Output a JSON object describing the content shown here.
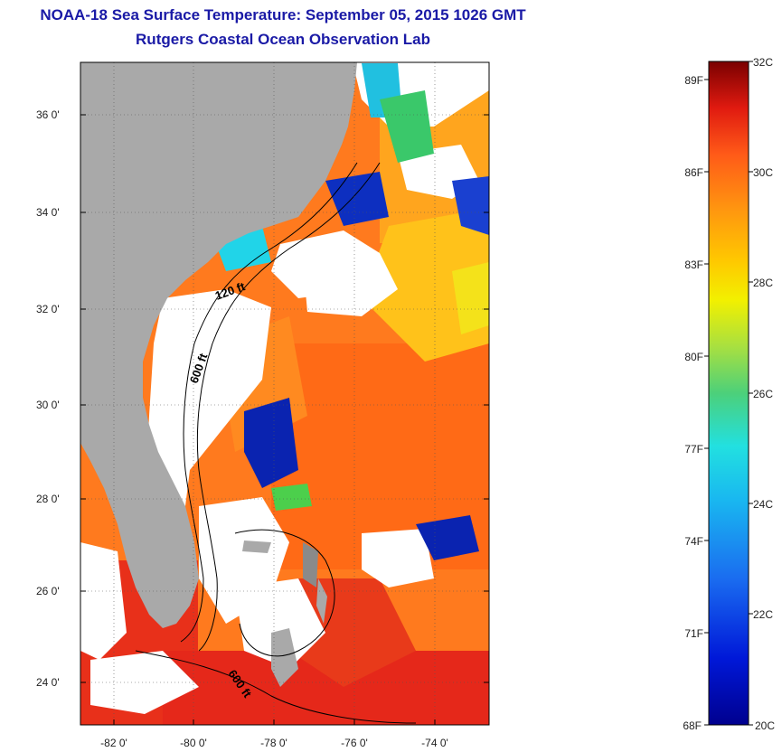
{
  "header": {
    "title": "NOAA-18 Sea Surface Temperature:  September 05, 2015 1026 GMT",
    "subtitle": "Rutgers Coastal Ocean Observation Lab"
  },
  "map": {
    "lat_labels": [
      "36 0'",
      "34 0'",
      "32 0'",
      "30 0'",
      "28 0'",
      "26 0'",
      "24 0'"
    ],
    "lon_labels": [
      "-82 0'",
      "-80 0'",
      "-78 0'",
      "-76 0'",
      "-74 0'"
    ],
    "lat_range": [
      23.0,
      37.2
    ],
    "lon_range": [
      -83.0,
      -72.8
    ],
    "contour_labels": [
      "120 ft",
      "600 ft",
      "600 ft"
    ],
    "colors": {
      "land": "#a9a9a9",
      "cloud": "#ffffff",
      "water_warm": "#ff6a1a",
      "water_hot": "#e8231a",
      "water_mild": "#ffb300",
      "water_cool": "#f2e400",
      "water_cold": "#0a1ea8",
      "water_cyan": "#21d4e8",
      "water_green": "#4ccf4c"
    }
  },
  "colorbar": {
    "fahrenheit_labels": [
      "89F",
      "86F",
      "83F",
      "80F",
      "77F",
      "74F",
      "71F",
      "68F"
    ],
    "celsius_labels": [
      "32C",
      "30C",
      "28C",
      "26C",
      "24C",
      "22C",
      "20C"
    ],
    "range_c": [
      20,
      32
    ]
  }
}
